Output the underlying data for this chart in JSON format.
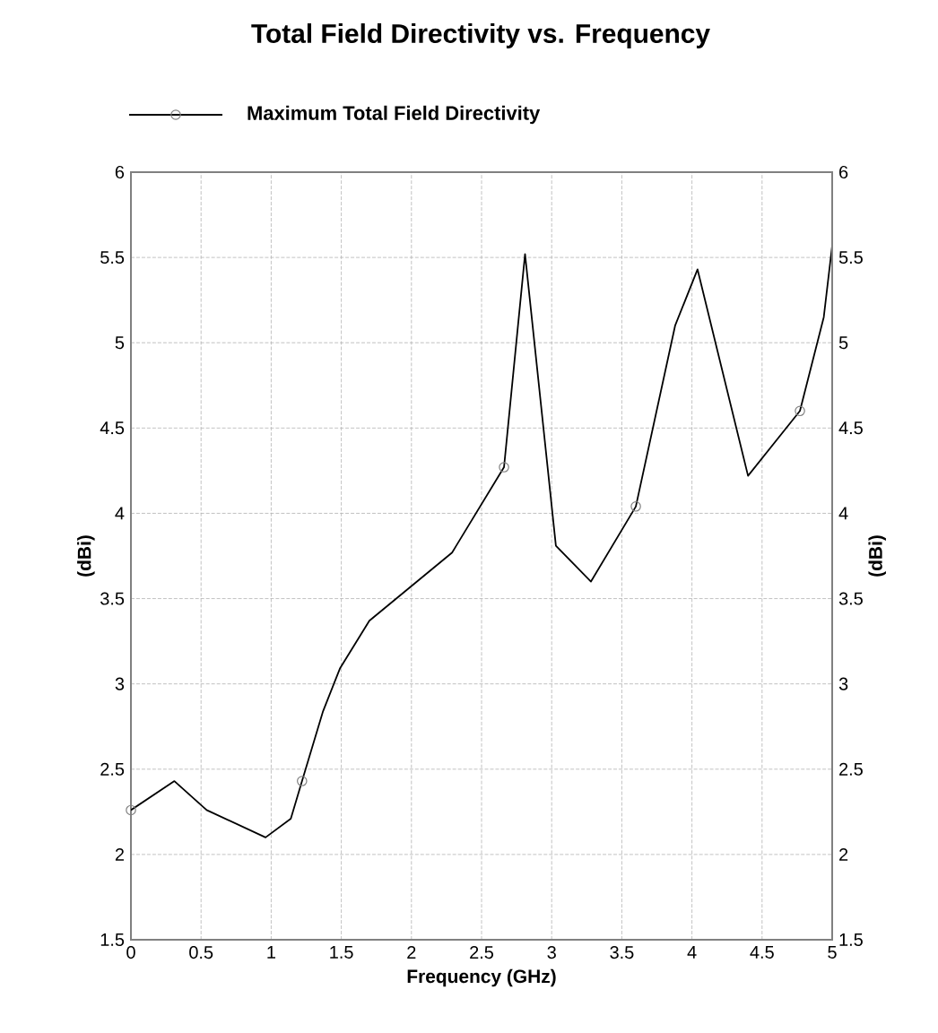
{
  "chart_data": {
    "type": "line",
    "title": "Total Field Directivity vs. Frequency",
    "xlabel": "Frequency (GHz)",
    "ylabel": "(dBi)",
    "y2label": "(dBi)",
    "xlim": [
      0,
      5
    ],
    "xticks": [
      0,
      0.5,
      1,
      1.5,
      2,
      2.5,
      3,
      3.5,
      4,
      4.5,
      5
    ],
    "ylim": [
      1.5,
      6
    ],
    "yticks": [
      1.5,
      2,
      2.5,
      3,
      3.5,
      4,
      4.5,
      5,
      5.5,
      6
    ],
    "y2lim": [
      1.5,
      6
    ],
    "y2ticks": [
      1.5,
      2,
      2.5,
      3,
      3.5,
      4,
      4.5,
      5,
      5.5,
      6
    ],
    "grid": true,
    "legend": "top",
    "marker": "circle",
    "series": [
      {
        "name": "Maximum Total Field Directivity",
        "color": "#000000",
        "marker": "none",
        "x": [
          0,
          0.31,
          0.54,
          0.96,
          1.14,
          1.22,
          1.37,
          1.49,
          1.7,
          2.29,
          2.66,
          2.81,
          3.03,
          3.28,
          3.6,
          3.88,
          4.04,
          4.4,
          4.77,
          4.94,
          5
        ],
        "values": [
          2.26,
          2.43,
          2.26,
          2.1,
          2.21,
          2.43,
          2.84,
          3.09,
          3.37,
          3.77,
          4.27,
          5.52,
          3.81,
          3.6,
          4.04,
          5.1,
          5.43,
          4.22,
          4.6,
          5.15,
          5.57
        ]
      },
      {
        "type": "scatter",
        "color": "#808080",
        "marker": "circle",
        "x": [
          0,
          1.22,
          2.66,
          3.6,
          4.77
        ],
        "values": [
          2.26,
          2.43,
          4.27,
          4.04,
          4.6
        ]
      }
    ]
  }
}
